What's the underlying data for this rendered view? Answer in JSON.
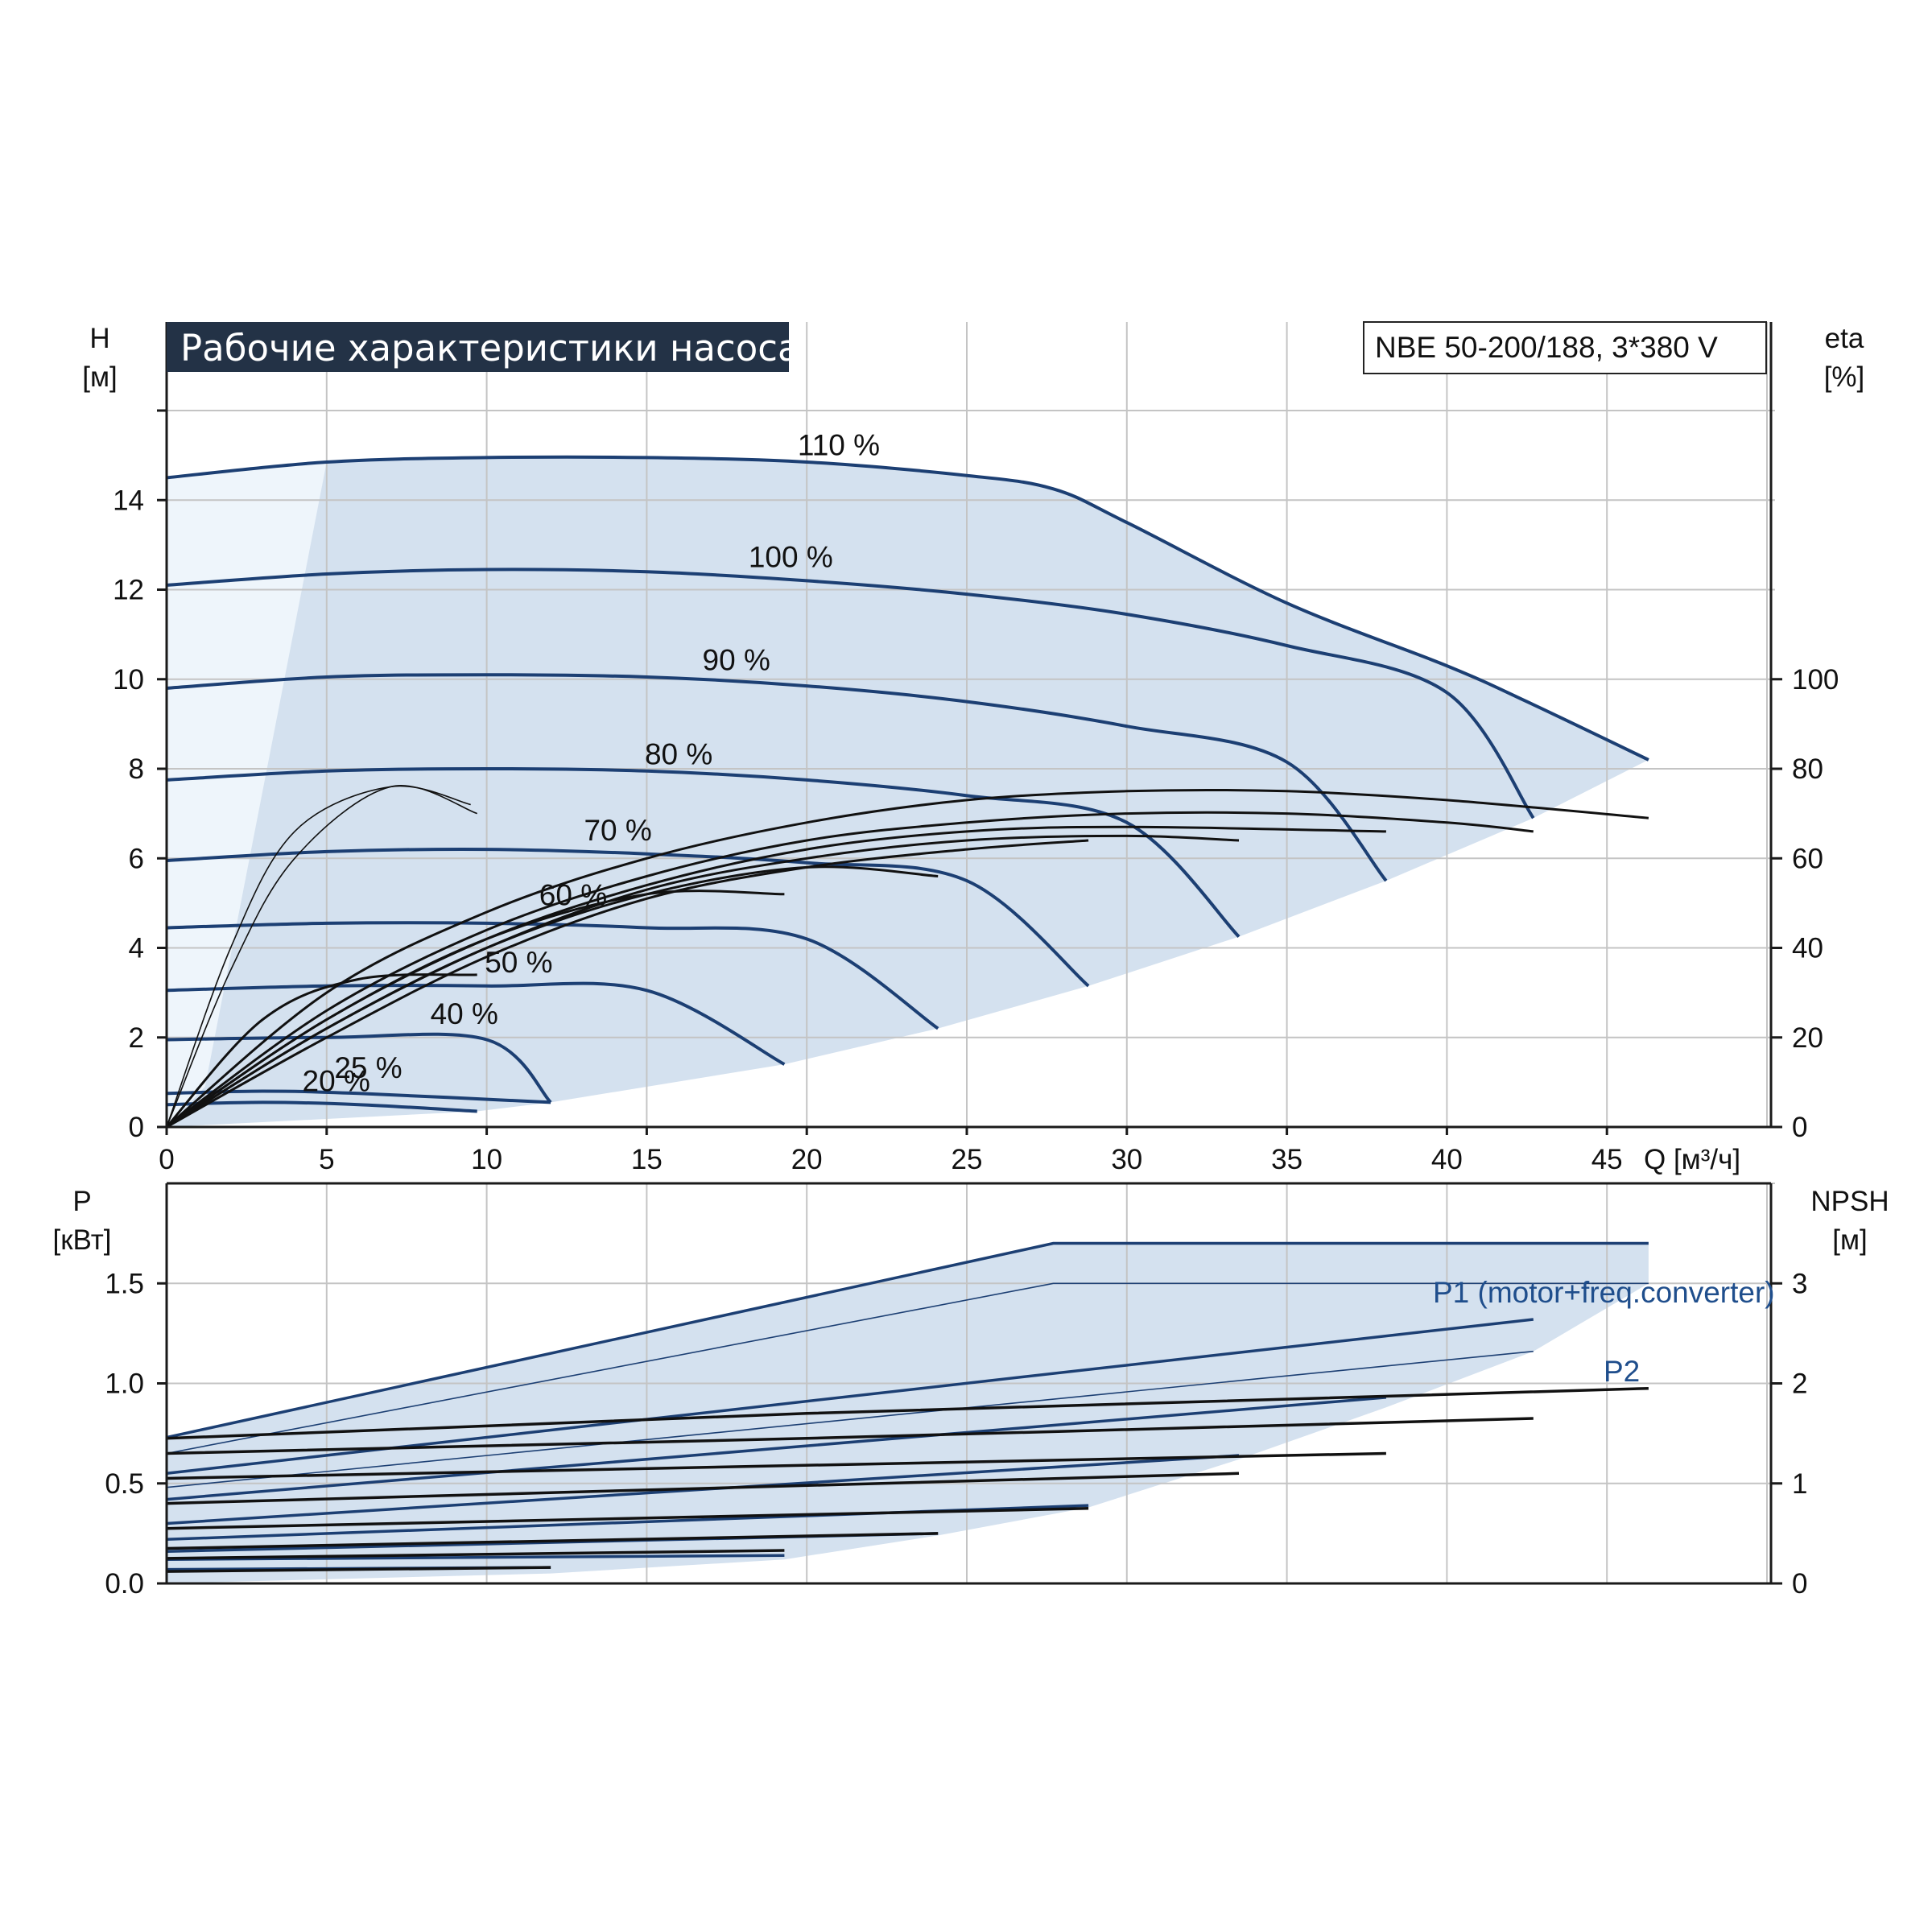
{
  "header": {
    "title": "Рабочие характеристики насоса",
    "model": "NBE 50-200/188, 3*380 V"
  },
  "axes": {
    "h_symbol": "H",
    "h_unit": "[м]",
    "eta_symbol": "eta",
    "eta_unit": "[%]",
    "q_label": "Q [м³/ч]",
    "p_symbol": "P",
    "p_unit": "[кВт]",
    "npsh_symbol": "NPSH",
    "npsh_unit": "[м]",
    "x_ticks": [
      "0",
      "5",
      "10",
      "15",
      "20",
      "25",
      "30",
      "35",
      "40",
      "45"
    ],
    "h_ticks": [
      "0",
      "2",
      "4",
      "6",
      "8",
      "10",
      "12",
      "14"
    ],
    "eta_ticks": [
      "0",
      "20",
      "40",
      "60",
      "80",
      "100"
    ],
    "p_ticks": [
      "0.0",
      "0.5",
      "1.0",
      "1.5"
    ],
    "npsh_ticks": [
      "0",
      "1",
      "2",
      "3"
    ]
  },
  "labels": {
    "p1": "P1 (motor+freq.converter)",
    "p2": "P2"
  },
  "colors": {
    "curve_blue": "#1c3f73",
    "area_fill": "#d4e1ef",
    "area_fill_light": "#eef5fb",
    "title_bg": "#233246"
  },
  "chart_data": [
    {
      "type": "line",
      "title": "Рабочие характеристики насоса",
      "xlabel": "Q [м³/ч]",
      "ylabel": "H [м]",
      "y2label": "eta [%]",
      "xlim": [
        0,
        50
      ],
      "ylim": [
        0,
        16
      ],
      "y2lim": [
        0,
        160
      ],
      "grid": true,
      "series": [
        {
          "name": "110 %",
          "x": [
            0,
            5,
            10,
            15,
            20,
            25,
            27.7,
            30,
            35,
            40,
            42.5,
            46.3
          ],
          "values": [
            14.5,
            14.85,
            14.95,
            14.95,
            14.85,
            14.55,
            14.25,
            13.5,
            11.7,
            10.3,
            9.5,
            8.2
          ]
        },
        {
          "name": "100 %",
          "x": [
            0,
            5,
            10,
            15,
            20,
            25,
            30,
            35,
            40,
            42.7
          ],
          "values": [
            12.1,
            12.35,
            12.45,
            12.4,
            12.2,
            11.9,
            11.45,
            10.75,
            9.7,
            6.9
          ]
        },
        {
          "name": "90 %",
          "x": [
            0,
            5,
            10,
            15,
            20,
            25,
            30,
            35,
            38.1
          ],
          "values": [
            9.8,
            10.05,
            10.1,
            10.05,
            9.85,
            9.5,
            8.95,
            8.15,
            5.5
          ]
        },
        {
          "name": "80 %",
          "x": [
            0,
            5,
            10,
            15,
            20,
            25,
            30,
            33.5
          ],
          "values": [
            7.75,
            7.95,
            8.0,
            7.95,
            7.75,
            7.4,
            6.8,
            4.25
          ]
        },
        {
          "name": "70 %",
          "x": [
            0,
            5,
            10,
            15,
            20,
            25,
            28.8
          ],
          "values": [
            5.95,
            6.15,
            6.2,
            6.1,
            5.9,
            5.5,
            3.15
          ]
        },
        {
          "name": "60 %",
          "x": [
            0,
            5,
            10,
            15,
            20,
            24.1
          ],
          "values": [
            4.45,
            4.55,
            4.55,
            4.45,
            4.2,
            2.2
          ]
        },
        {
          "name": "50 %",
          "x": [
            0,
            5,
            10,
            15,
            19.3
          ],
          "values": [
            3.05,
            3.15,
            3.15,
            3.05,
            1.4
          ]
        },
        {
          "name": "40 %",
          "x": [
            0,
            5,
            10,
            12
          ],
          "values": [
            1.95,
            2.0,
            1.95,
            0.55
          ]
        },
        {
          "name": "25 %",
          "x": [
            0,
            3,
            6,
            12
          ],
          "values": [
            0.75,
            0.8,
            0.75,
            0.55
          ]
        },
        {
          "name": "20 %",
          "x": [
            0,
            3,
            6,
            9.7
          ],
          "values": [
            0.5,
            0.55,
            0.5,
            0.35
          ]
        },
        {
          "name": "eta 110 %",
          "axis": "y2",
          "x": [
            0,
            5,
            10,
            15,
            20,
            25,
            30,
            35,
            40,
            46.3
          ],
          "values": [
            0,
            30,
            48,
            60,
            68,
            73,
            75,
            75,
            73,
            69
          ]
        },
        {
          "name": "eta 100 %",
          "axis": "y2",
          "x": [
            0,
            5,
            10,
            15,
            20,
            25,
            30,
            35,
            40,
            42.7
          ],
          "values": [
            0,
            26,
            44,
            56,
            64,
            68,
            70,
            70,
            68,
            66
          ]
        },
        {
          "name": "eta 90 %",
          "axis": "y2",
          "x": [
            0,
            5,
            10,
            15,
            20,
            25,
            30,
            38.1
          ],
          "values": [
            0,
            24,
            42,
            54,
            62,
            66,
            67,
            66
          ]
        },
        {
          "name": "eta 80 %",
          "axis": "y2",
          "x": [
            0,
            5,
            10,
            15,
            20,
            25,
            30,
            33.5
          ],
          "values": [
            0,
            22,
            40,
            53,
            60,
            64,
            65,
            64
          ]
        },
        {
          "name": "eta 70 %",
          "axis": "y2",
          "x": [
            0,
            5,
            10,
            15,
            20,
            25,
            28.8
          ],
          "values": [
            0,
            20,
            38,
            51,
            58,
            62,
            64
          ]
        },
        {
          "name": "eta 60 %",
          "axis": "y2",
          "x": [
            0,
            5,
            10,
            15,
            20,
            24.1
          ],
          "values": [
            0,
            22,
            40,
            52,
            58,
            56
          ]
        },
        {
          "name": "eta 50 %",
          "axis": "y2",
          "x": [
            0,
            5,
            10,
            15,
            19.3
          ],
          "values": [
            0,
            24,
            42,
            52,
            52
          ]
        },
        {
          "name": "eta 40 %",
          "axis": "y2",
          "x": [
            0,
            3,
            6,
            9.7
          ],
          "values": [
            0,
            24,
            33,
            34
          ]
        },
        {
          "name": "eta 25 %",
          "axis": "y2",
          "x": [
            0,
            2,
            4,
            7,
            9.7
          ],
          "values": [
            0,
            35,
            60,
            76,
            70
          ]
        },
        {
          "name": "eta 20 %",
          "axis": "y2",
          "x": [
            0,
            2,
            4,
            7,
            9.5
          ],
          "values": [
            0,
            40,
            66,
            76,
            72
          ]
        }
      ]
    },
    {
      "type": "line",
      "xlabel": "Q [м³/ч]",
      "ylabel": "P [кВт]",
      "y2label": "NPSH [м]",
      "xlim": [
        0,
        50
      ],
      "ylim": [
        0,
        2.0
      ],
      "y2lim": [
        0,
        4.0
      ],
      "grid": true,
      "series": [
        {
          "name": "P1 (motor+freq.converter)",
          "x": [
            0,
            27.7,
            46.3
          ],
          "values": [
            0.73,
            1.7,
            1.7
          ]
        },
        {
          "name": "P2",
          "x": [
            0,
            27.7,
            46.3
          ],
          "values": [
            0.65,
            1.5,
            1.5
          ]
        },
        {
          "name": "P1 100 %",
          "x": [
            0,
            42.7
          ],
          "values": [
            0.55,
            1.32
          ]
        },
        {
          "name": "P2 100 %",
          "x": [
            0,
            42.7
          ],
          "values": [
            0.48,
            1.16
          ]
        },
        {
          "name": "P1 90 %",
          "x": [
            0,
            38.1
          ],
          "values": [
            0.42,
            0.93
          ]
        },
        {
          "name": "P1 80 %",
          "x": [
            0,
            33.5
          ],
          "values": [
            0.3,
            0.64
          ]
        },
        {
          "name": "P1 70 %",
          "x": [
            0,
            28.8
          ],
          "values": [
            0.22,
            0.39
          ]
        },
        {
          "name": "P1 60 %",
          "x": [
            0,
            24.1
          ],
          "values": [
            0.16,
            0.25
          ]
        },
        {
          "name": "P1 50 %",
          "x": [
            0,
            19.3
          ],
          "values": [
            0.12,
            0.14
          ]
        },
        {
          "name": "P1 40 %",
          "x": [
            0,
            12
          ],
          "values": [
            0.07,
            0.08
          ]
        },
        {
          "name": "NPSH 110 %",
          "axis": "y2",
          "x": [
            0,
            20,
            46.3
          ],
          "values": [
            1.45,
            1.7,
            1.95
          ]
        },
        {
          "name": "NPSH 100 %",
          "axis": "y2",
          "x": [
            0,
            20,
            42.7
          ],
          "values": [
            1.3,
            1.45,
            1.65
          ]
        },
        {
          "name": "NPSH 90 %",
          "axis": "y2",
          "x": [
            0,
            38.1
          ],
          "values": [
            1.05,
            1.3
          ]
        },
        {
          "name": "NPSH 80 %",
          "axis": "y2",
          "x": [
            0,
            33.5
          ],
          "values": [
            0.8,
            1.1
          ]
        },
        {
          "name": "NPSH 70 %",
          "axis": "y2",
          "x": [
            0,
            28.8
          ],
          "values": [
            0.55,
            0.75
          ]
        },
        {
          "name": "NPSH 60 %",
          "axis": "y2",
          "x": [
            0,
            24.1
          ],
          "values": [
            0.35,
            0.5
          ]
        },
        {
          "name": "NPSH 50 %",
          "axis": "y2",
          "x": [
            0,
            19.3
          ],
          "values": [
            0.25,
            0.33
          ]
        },
        {
          "name": "NPSH 40 %",
          "axis": "y2",
          "x": [
            0,
            12
          ],
          "values": [
            0.12,
            0.16
          ]
        }
      ]
    }
  ],
  "envelopes": {
    "qh_upper_series": "110 %",
    "qh_lower": {
      "x": [
        0,
        9.7,
        12,
        19.3,
        24.1,
        28.8,
        33.5,
        38.1,
        42.7,
        46.3
      ],
      "values": [
        0,
        0.35,
        0.55,
        1.4,
        2.2,
        3.15,
        4.25,
        5.5,
        6.9,
        8.2
      ]
    },
    "power_upper_series": "P1 (motor+freq.converter)",
    "power_lower": {
      "x": [
        0,
        12,
        19.3,
        24.1,
        28.8,
        33.5,
        38.1,
        42.7,
        46.3
      ],
      "values": [
        0,
        0.05,
        0.12,
        0.24,
        0.38,
        0.62,
        0.88,
        1.16,
        1.5
      ]
    }
  }
}
